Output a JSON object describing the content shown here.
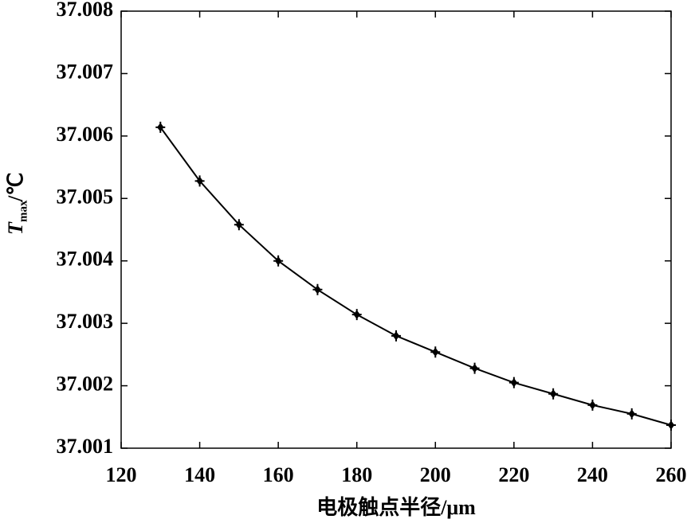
{
  "chart_data": {
    "type": "line",
    "x_label": "电极触点半径/μm",
    "y_label": "T",
    "y_label_sub": "max",
    "y_label_unit": "/℃",
    "x": [
      130,
      140,
      150,
      160,
      170,
      180,
      190,
      200,
      210,
      220,
      230,
      240,
      250,
      260
    ],
    "series": [
      {
        "color": "#000000",
        "values": [
          37.00614,
          37.00528,
          37.00458,
          37.004,
          37.00354,
          37.00314,
          37.0028,
          37.00254,
          37.00228,
          37.00205,
          37.00187,
          37.00169,
          37.00155,
          37.00137
        ]
      }
    ],
    "xlim": [
      120,
      260
    ],
    "xticks": [
      120,
      140,
      160,
      180,
      200,
      220,
      240,
      260
    ],
    "ylim": [
      37.001,
      37.008
    ],
    "yticks": [
      37.001,
      37.002,
      37.003,
      37.004,
      37.005,
      37.006,
      37.007,
      37.008
    ],
    "grid": false
  }
}
